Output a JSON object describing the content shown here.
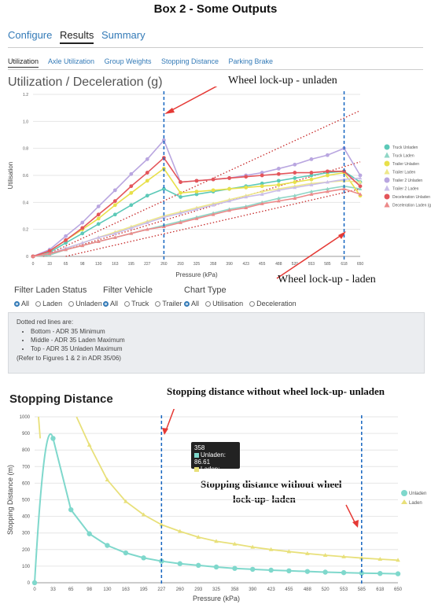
{
  "box_title": "Box 2 - Some Outputs",
  "tabs": [
    "Configure",
    "Results",
    "Summary"
  ],
  "active_tab": "Results",
  "subtabs": [
    "Utilization",
    "Axle Utilization",
    "Group Weights",
    "Stopping Distance",
    "Parking Brake"
  ],
  "chart1": {
    "title": "Utilization / Deceleration (g)",
    "annotations": {
      "unladen": "Wheel lock-up - unladen",
      "laden": "Wheel lock-up - laden"
    }
  },
  "filters": {
    "laden_status": {
      "label": "Filter Laden Status",
      "options": [
        "All",
        "Laden",
        "Unladen"
      ],
      "selected": "All"
    },
    "vehicle": {
      "label": "Filter Vehicle",
      "options": [
        "All",
        "Truck",
        "Trailer"
      ],
      "selected": "All"
    },
    "chart_type": {
      "label": "Chart Type",
      "options": [
        "All",
        "Utilisation",
        "Deceleration"
      ],
      "selected": "All"
    }
  },
  "note": {
    "heading": "Dotted red lines are:",
    "items": [
      "Bottom - ADR 35 Minimum",
      "Middle - ADR 35 Laden Maximum",
      "Top - ADR 35 Unladen Maximum"
    ],
    "footer": "(Refer to Figures 1 & 2 in ADR 35/06)"
  },
  "chart2": {
    "title": "Stopping Distance",
    "annotations": {
      "unladen": "Stopping distance without wheel lock-up- unladen",
      "laden_line1": "Stopping distance without wheel",
      "laden_line2": "lock-up- laden"
    },
    "tooltip": {
      "title": "358",
      "unladen": "Unladen: 86.61",
      "laden": "Laden: 233.54"
    }
  },
  "colors": {
    "truck_unladen": "#5cc9b8",
    "truck_laden": "#8fd6c6",
    "trailer_unladen": "#e8e04a",
    "trailer_laden": "#eee88a",
    "trailer2_unladen": "#b9a6e0",
    "trailer2_laden": "#c9bde8",
    "decel_unladen": "#e4555a",
    "decel_laden": "#ec8a8a",
    "sd_unladen": "#7fd8cc",
    "sd_laden": "#e8e07a",
    "red_dotted": "#c62828",
    "blue_dashed": "#1565c0"
  },
  "chart_data": [
    {
      "type": "line",
      "xlabel": "Pressure (kPa)",
      "ylabel": "Utilisation",
      "ylim": [
        0,
        1.2
      ],
      "yticks": [
        "0",
        "0.2",
        "0.4",
        "0.6",
        "0.8",
        "1.0",
        "1.2"
      ],
      "x": [
        0,
        33,
        65,
        98,
        130,
        163,
        195,
        227,
        260,
        293,
        325,
        358,
        390,
        423,
        455,
        488,
        520,
        553,
        585,
        618,
        650
      ],
      "xtick_labels": [
        "0",
        "33",
        "65",
        "98",
        "130",
        "163",
        "195",
        "227",
        "260",
        "293",
        "325",
        "358",
        "390",
        "423",
        "455",
        "488",
        "520",
        "553",
        "585",
        "618",
        "650"
      ],
      "legend": "right",
      "series": [
        {
          "name": "Truck Unladen",
          "values": [
            0,
            0.03,
            0.1,
            0.17,
            0.24,
            0.31,
            0.38,
            0.45,
            0.5,
            0.44,
            0.46,
            0.48,
            0.5,
            0.52,
            0.54,
            0.56,
            0.58,
            0.6,
            0.62,
            0.63,
            0.55
          ]
        },
        {
          "name": "Truck Laden",
          "values": [
            0,
            0.01,
            0.05,
            0.08,
            0.11,
            0.14,
            0.17,
            0.2,
            0.23,
            0.26,
            0.29,
            0.32,
            0.35,
            0.37,
            0.4,
            0.43,
            0.45,
            0.48,
            0.5,
            0.52,
            0.5
          ]
        },
        {
          "name": "Trailer Unladen",
          "values": [
            0,
            0.04,
            0.12,
            0.2,
            0.28,
            0.38,
            0.47,
            0.56,
            0.65,
            0.47,
            0.48,
            0.49,
            0.5,
            0.51,
            0.52,
            0.53,
            0.55,
            0.57,
            0.6,
            0.62,
            0.45
          ]
        },
        {
          "name": "Trailer Laden",
          "values": [
            0,
            0.02,
            0.06,
            0.1,
            0.14,
            0.18,
            0.22,
            0.26,
            0.3,
            0.33,
            0.36,
            0.39,
            0.42,
            0.45,
            0.48,
            0.5,
            0.52,
            0.54,
            0.55,
            0.56,
            0.55
          ]
        },
        {
          "name": "Trailer 2 Unladen",
          "values": [
            0,
            0.05,
            0.15,
            0.25,
            0.37,
            0.49,
            0.61,
            0.72,
            0.86,
            0.55,
            0.56,
            0.57,
            0.58,
            0.6,
            0.62,
            0.65,
            0.68,
            0.72,
            0.75,
            0.8,
            0.6
          ]
        },
        {
          "name": "Trailer 2 Laden",
          "values": [
            0,
            0.02,
            0.06,
            0.1,
            0.14,
            0.17,
            0.21,
            0.25,
            0.29,
            0.32,
            0.35,
            0.38,
            0.41,
            0.44,
            0.46,
            0.49,
            0.51,
            0.53,
            0.55,
            0.57,
            0.58
          ]
        },
        {
          "name": "Deceleration Unladen (g)",
          "values": [
            0,
            0.04,
            0.12,
            0.21,
            0.31,
            0.41,
            0.52,
            0.62,
            0.73,
            0.55,
            0.56,
            0.57,
            0.58,
            0.59,
            0.6,
            0.61,
            0.62,
            0.62,
            0.63,
            0.63,
            0.52
          ]
        },
        {
          "name": "Deceleration Laden (g)",
          "values": [
            0,
            0.02,
            0.05,
            0.08,
            0.11,
            0.14,
            0.17,
            0.2,
            0.22,
            0.25,
            0.28,
            0.31,
            0.34,
            0.36,
            0.39,
            0.41,
            0.43,
            0.46,
            0.48,
            0.5,
            0.46
          ]
        }
      ],
      "reference_lines": [
        {
          "name": "Bottom - ADR 35 Minimum",
          "from": [
            65,
            0
          ],
          "to": [
            650,
            0.5
          ]
        },
        {
          "name": "Middle - ADR 35 Laden Maximum",
          "from": [
            20,
            0
          ],
          "to": [
            650,
            0.7
          ]
        },
        {
          "name": "Top - ADR 35 Unladen Maximum",
          "from": [
            20,
            0
          ],
          "to": [
            650,
            1.08
          ]
        }
      ],
      "vertical_markers": [
        260,
        618
      ]
    },
    {
      "type": "line",
      "xlabel": "Pressure (kPa)",
      "ylabel": "Stopping Distance (m)",
      "ylim": [
        0,
        1000
      ],
      "yticks": [
        "0",
        "100",
        "200",
        "300",
        "400",
        "500",
        "600",
        "700",
        "800",
        "900",
        "1000"
      ],
      "x": [
        0,
        33,
        65,
        98,
        130,
        163,
        195,
        227,
        260,
        293,
        325,
        358,
        390,
        423,
        455,
        488,
        520,
        553,
        585,
        618,
        650
      ],
      "xtick_labels": [
        "0",
        "33",
        "65",
        "98",
        "130",
        "163",
        "195",
        "227",
        "260",
        "293",
        "325",
        "358",
        "390",
        "423",
        "455",
        "488",
        "520",
        "553",
        "585",
        "618",
        "650"
      ],
      "legend": "right",
      "series": [
        {
          "name": "Unladen",
          "values": [
            0,
            870,
            440,
            295,
            225,
            180,
            150,
            130,
            115,
            105,
            95,
            86.61,
            81,
            76,
            72,
            68,
            64,
            61,
            58,
            56,
            54
          ]
        },
        {
          "name": "Laden",
          "values": [
            null,
            null,
            null,
            830,
            620,
            490,
            410,
            350,
            310,
            275,
            250,
            233.54,
            215,
            200,
            188,
            176,
            166,
            157,
            149,
            142,
            136
          ]
        }
      ],
      "vertical_markers": [
        227,
        585
      ],
      "tooltip": {
        "x": "358",
        "Unladen": 86.61,
        "Laden": 233.54
      }
    }
  ]
}
